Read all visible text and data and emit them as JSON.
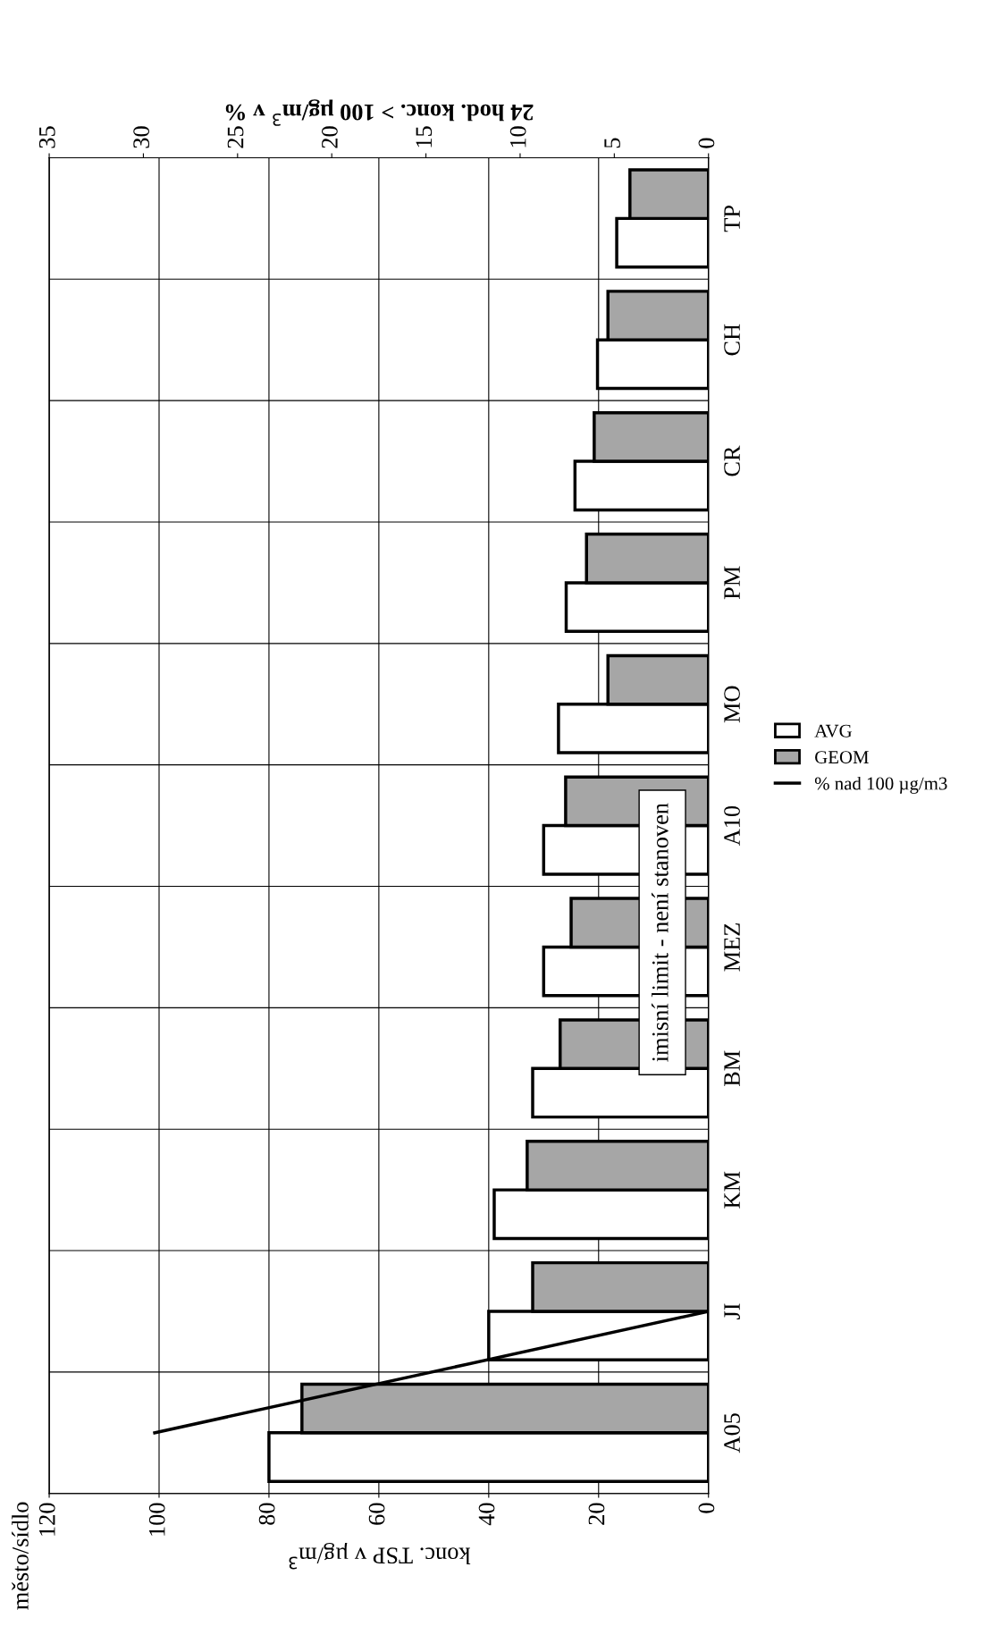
{
  "chart_data": {
    "type": "bar",
    "orientation": "horizontal",
    "categories": [
      "TP",
      "CH",
      "CR",
      "PM",
      "MO",
      "A10",
      "MEZ",
      "BM",
      "KM",
      "JI",
      "A05"
    ],
    "series": [
      {
        "name": "AVG",
        "color": "#ffffff",
        "values": [
          16.7,
          20.2,
          24.3,
          25.9,
          27.3,
          30,
          30,
          32,
          39,
          40,
          80
        ]
      },
      {
        "name": "GEOM",
        "color": "#a6a6a6",
        "values": [
          14.3,
          18.3,
          20.8,
          22.2,
          18.3,
          26,
          25,
          27,
          33,
          32,
          74
        ]
      },
      {
        "name": "% nad 100 µg/m3",
        "type": "line",
        "axis": "x2",
        "color": "#000000",
        "values": [
          null,
          null,
          null,
          null,
          null,
          null,
          null,
          null,
          null,
          0,
          29.4
        ]
      }
    ],
    "xlim": [
      120,
      0
    ],
    "xticks": [
      0,
      20,
      40,
      60,
      80,
      100,
      120
    ],
    "x2lim": [
      35,
      0
    ],
    "x2ticks": [
      0,
      5,
      10,
      15,
      20,
      25,
      30,
      35
    ],
    "xlabel": "konc. TSP v µg/m$^{3}$",
    "x2label": "24 hod. konc. > 100 µg/m$^{3}$ v %",
    "ylabel": "město/sídlo",
    "annotations": [
      "imisní limit - není stanoven"
    ],
    "grid": true,
    "legend": "right"
  }
}
